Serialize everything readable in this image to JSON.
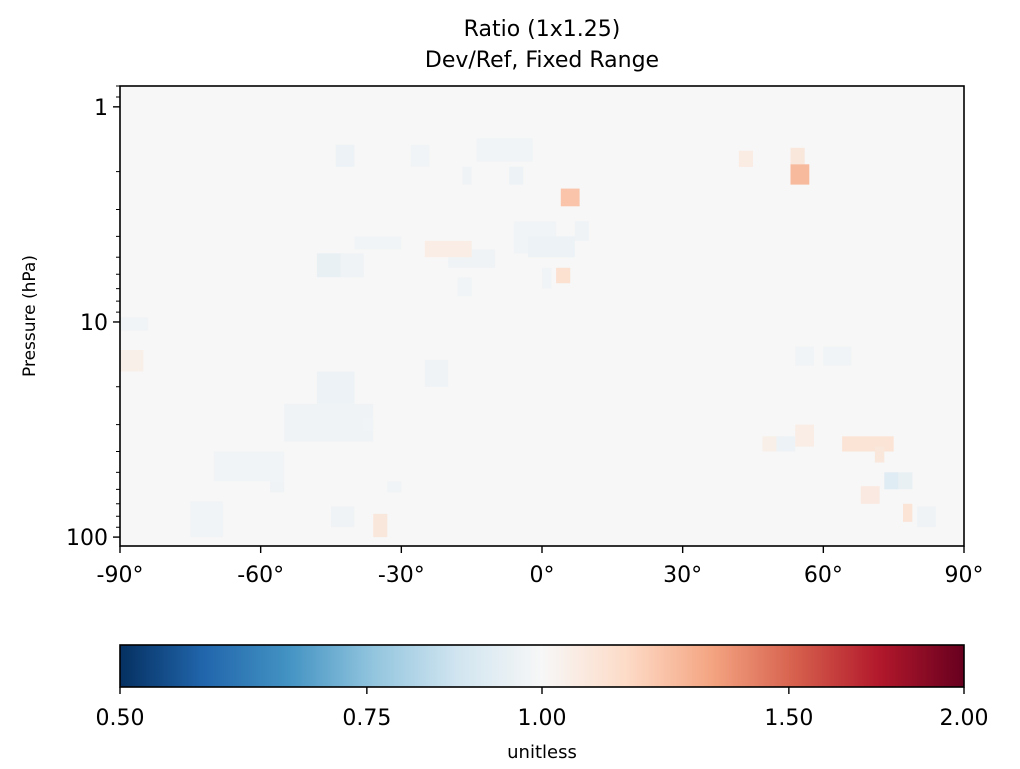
{
  "chart_data": {
    "type": "heatmap",
    "title": "Ratio (1x1.25)",
    "subtitle": "Dev/Ref, Fixed Range",
    "xlabel": "",
    "ylabel": "Pressure (hPa)",
    "x_axis": {
      "range": [
        -90,
        90
      ],
      "ticks": [
        -90,
        -60,
        -30,
        0,
        30,
        60,
        90
      ],
      "tick_labels": [
        "-90°",
        "-60°",
        "-30°",
        "0°",
        "30°",
        "60°",
        "90°"
      ]
    },
    "y_axis": {
      "scale": "log",
      "inverted": true,
      "range": [
        0.8,
        110
      ],
      "ticks": [
        1,
        10,
        100
      ],
      "tick_labels": [
        "1",
        "10",
        "100"
      ]
    },
    "grid": false,
    "background_value": 1.0,
    "cells": [
      {
        "lat": [
          -48,
          -42
        ],
        "p": [
          4.8,
          6.2
        ],
        "value": 0.95
      },
      {
        "lat": [
          -43,
          -38
        ],
        "p": [
          4.8,
          6.2
        ],
        "value": 0.97
      },
      {
        "lat": [
          -20,
          -10
        ],
        "p": [
          4.6,
          5.6
        ],
        "value": 0.97
      },
      {
        "lat": [
          -18,
          -15
        ],
        "p": [
          6.2,
          7.6
        ],
        "value": 0.98
      },
      {
        "lat": [
          0,
          2
        ],
        "p": [
          5.6,
          7.0
        ],
        "value": 0.98
      },
      {
        "lat": [
          3,
          6
        ],
        "p": [
          5.6,
          6.6
        ],
        "value": 1.12
      },
      {
        "lat": [
          -6,
          3
        ],
        "p": [
          3.4,
          4.8
        ],
        "value": 0.98
      },
      {
        "lat": [
          -3,
          7
        ],
        "p": [
          4.0,
          5.0
        ],
        "value": 0.96
      },
      {
        "lat": [
          7,
          10
        ],
        "p": [
          3.4,
          4.2
        ],
        "value": 0.97
      },
      {
        "lat": [
          4,
          8
        ],
        "p": [
          2.4,
          2.9
        ],
        "value": 1.22
      },
      {
        "lat": [
          -14,
          -2
        ],
        "p": [
          1.4,
          1.8
        ],
        "value": 0.98
      },
      {
        "lat": [
          -44,
          -40
        ],
        "p": [
          1.5,
          1.9
        ],
        "value": 0.96
      },
      {
        "lat": [
          -28,
          -24
        ],
        "p": [
          1.5,
          1.9
        ],
        "value": 0.98
      },
      {
        "lat": [
          -7,
          -4
        ],
        "p": [
          1.9,
          2.3
        ],
        "value": 0.96
      },
      {
        "lat": [
          -17,
          -15
        ],
        "p": [
          1.9,
          2.3
        ],
        "value": 0.97
      },
      {
        "lat": [
          53,
          56
        ],
        "p": [
          1.55,
          1.85
        ],
        "value": 1.08
      },
      {
        "lat": [
          53,
          57
        ],
        "p": [
          1.85,
          2.3
        ],
        "value": 1.25
      },
      {
        "lat": [
          42,
          45
        ],
        "p": [
          1.6,
          1.9
        ],
        "value": 1.06
      },
      {
        "lat": [
          -25,
          -15
        ],
        "p": [
          4.2,
          5.0
        ],
        "value": 1.05
      },
      {
        "lat": [
          -40,
          -30
        ],
        "p": [
          4.0,
          4.6
        ],
        "value": 0.98
      },
      {
        "lat": [
          -90,
          -84
        ],
        "p": [
          9.5,
          11.0
        ],
        "value": 0.98
      },
      {
        "lat": [
          -90,
          -85
        ],
        "p": [
          13.5,
          17.0
        ],
        "value": 1.04
      },
      {
        "lat": [
          -48,
          -40
        ],
        "p": [
          17,
          24
        ],
        "value": 0.96
      },
      {
        "lat": [
          -55,
          -36
        ],
        "p": [
          24,
          36
        ],
        "value": 0.97
      },
      {
        "lat": [
          -38,
          -36
        ],
        "p": [
          28,
          32
        ],
        "value": 0.98
      },
      {
        "lat": [
          -25,
          -20
        ],
        "p": [
          15,
          20
        ],
        "value": 0.97
      },
      {
        "lat": [
          -70,
          -55
        ],
        "p": [
          40,
          55
        ],
        "value": 0.98
      },
      {
        "lat": [
          -75,
          -68
        ],
        "p": [
          68,
          100
        ],
        "value": 0.98
      },
      {
        "lat": [
          -45,
          -40
        ],
        "p": [
          72,
          90
        ],
        "value": 0.97
      },
      {
        "lat": [
          -36,
          -33
        ],
        "p": [
          78,
          100
        ],
        "value": 1.08
      },
      {
        "lat": [
          -58,
          -55
        ],
        "p": [
          55,
          62
        ],
        "value": 0.97
      },
      {
        "lat": [
          -33,
          -30
        ],
        "p": [
          55,
          62
        ],
        "value": 0.98
      },
      {
        "lat": [
          47,
          52
        ],
        "p": [
          34,
          40
        ],
        "value": 1.04
      },
      {
        "lat": [
          50,
          54
        ],
        "p": [
          34,
          40
        ],
        "value": 0.96
      },
      {
        "lat": [
          54,
          58
        ],
        "p": [
          30,
          38
        ],
        "value": 1.05
      },
      {
        "lat": [
          64,
          75
        ],
        "p": [
          34,
          40
        ],
        "value": 1.1
      },
      {
        "lat": [
          71,
          73
        ],
        "p": [
          38,
          45
        ],
        "value": 1.08
      },
      {
        "lat": [
          73,
          76
        ],
        "p": [
          50,
          60
        ],
        "value": 0.92
      },
      {
        "lat": [
          76,
          79
        ],
        "p": [
          50,
          60
        ],
        "value": 0.95
      },
      {
        "lat": [
          68,
          72
        ],
        "p": [
          58,
          70
        ],
        "value": 1.07
      },
      {
        "lat": [
          77,
          79
        ],
        "p": [
          70,
          85
        ],
        "value": 1.1
      },
      {
        "lat": [
          80,
          84
        ],
        "p": [
          72,
          90
        ],
        "value": 0.97
      },
      {
        "lat": [
          60,
          66
        ],
        "p": [
          13,
          16
        ],
        "value": 0.98
      },
      {
        "lat": [
          54,
          58
        ],
        "p": [
          13,
          16
        ],
        "value": 0.98
      }
    ],
    "colorbar": {
      "label": "unitless",
      "colormap": "RdBu_r",
      "range": [
        0.5,
        2.0
      ],
      "scale": "log",
      "ticks": [
        0.5,
        0.75,
        1.0,
        1.5,
        2.0
      ],
      "tick_labels": [
        "0.50",
        "0.75",
        "1.00",
        "1.50",
        "2.00"
      ],
      "color_stops": [
        "#053061",
        "#2166ac",
        "#4393c3",
        "#92c5de",
        "#d1e5f0",
        "#f7f7f7",
        "#fddbc7",
        "#f4a582",
        "#d6604d",
        "#b2182b",
        "#67001f"
      ]
    }
  }
}
